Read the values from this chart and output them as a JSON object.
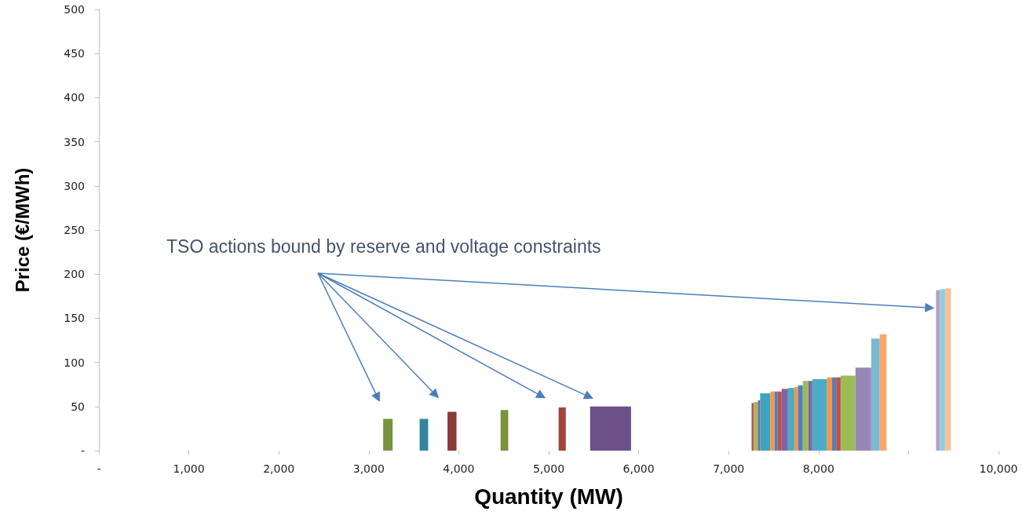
{
  "chart_data": {
    "type": "histogram",
    "xlabel": "Quantity (MW)",
    "ylabel": "Price (€/MWh)",
    "annotations": [
      "TSO actions bound by reserve and voltage constraints"
    ],
    "bins": [
      3160,
      3265,
      3565,
      3660,
      3875,
      3975,
      4465,
      4550,
      5110,
      5190,
      5460,
      5915,
      7255,
      7280,
      7325,
      7350,
      7465,
      7510,
      7545,
      7590,
      7660,
      7730,
      7770,
      7825,
      7885,
      7930,
      8095,
      8150,
      8195,
      8245,
      8410,
      8585,
      8680,
      8755,
      9305,
      9350,
      9410,
      9470
    ],
    "values": [
      36,
      null,
      36,
      null,
      44,
      null,
      46,
      null,
      49,
      null,
      50,
      null,
      54,
      55,
      57,
      65,
      67,
      67,
      67,
      70,
      71,
      72,
      74,
      79,
      79,
      81,
      83,
      83,
      83,
      85,
      94,
      127,
      132,
      null,
      182,
      183,
      184
    ],
    "colors": [
      "#77933c",
      null,
      "#31859c",
      null,
      "#8b3a3a",
      null,
      "#77933c",
      null,
      "#a5443f",
      null,
      "#6b5089",
      null,
      "#c0504d",
      "#9bbb59",
      "#8064a2",
      "#3fa3c0",
      "#f79646",
      "#4f81bd",
      "#c0504d",
      "#8064a2",
      "#4bacc6",
      "#f79646",
      "#4f81bd",
      "#9bbb59",
      "#8064a2",
      "#4bacc6",
      "#f79646",
      "#4f81bd",
      "#c0504d",
      "#9bbb59",
      "#9a86b5",
      "#7ab9d0",
      "#f9a66b",
      null,
      "#b3a2c7",
      "#93cddd",
      "#fac090"
    ],
    "xlim": [
      0,
      10000
    ],
    "xticks": [
      {
        "value": 0,
        "label": "-"
      },
      {
        "value": 1000,
        "label": "1,000"
      },
      {
        "value": 2000,
        "label": "2,000"
      },
      {
        "value": 3000,
        "label": "3,000"
      },
      {
        "value": 4000,
        "label": "4,000"
      },
      {
        "value": 5000,
        "label": "5,000"
      },
      {
        "value": 6000,
        "label": "6,000"
      },
      {
        "value": 7000,
        "label": "7,000"
      },
      {
        "value": 8000,
        "label": "8,000"
      },
      {
        "value": 9000,
        "label": null
      },
      {
        "value": 10000,
        "label": "10,000"
      }
    ],
    "ylim": [
      0,
      500
    ],
    "yticks": [
      {
        "value": 0,
        "label": "-"
      },
      50,
      100,
      150,
      200,
      250,
      300,
      350,
      400,
      450,
      500
    ],
    "grid": false
  }
}
